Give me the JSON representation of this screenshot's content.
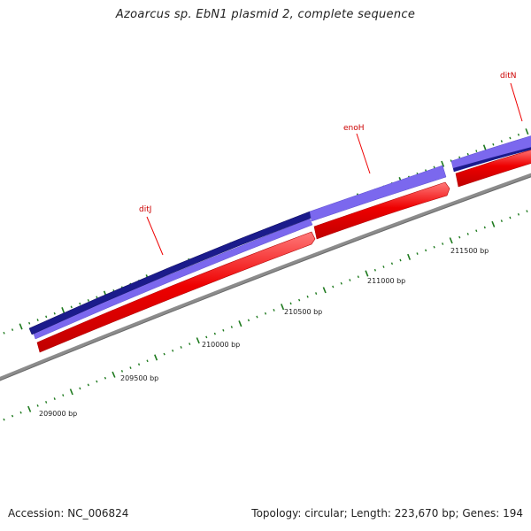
{
  "title": "Azoarcus sp. EbN1 plasmid 2, complete sequence",
  "footer": {
    "accession": "Accession: NC_006824",
    "summary": "Topology: circular; Length: 223,670 bp; Genes: 194"
  },
  "colors": {
    "backbone": "#8c8c8c",
    "reverse_gene": "#ee0000",
    "forward_gene": "#7b68ee",
    "forward_gene_dark": "#1b1b8c",
    "tick": "#1e7a1e",
    "gene_label": "#cc0000"
  },
  "scale_labels": [
    "209000 bp",
    "209500 bp",
    "210000 bp",
    "210500 bp",
    "211000 bp",
    "211500 bp"
  ],
  "gene_labels": [
    "ditJ",
    "enoH",
    "ditN"
  ]
}
